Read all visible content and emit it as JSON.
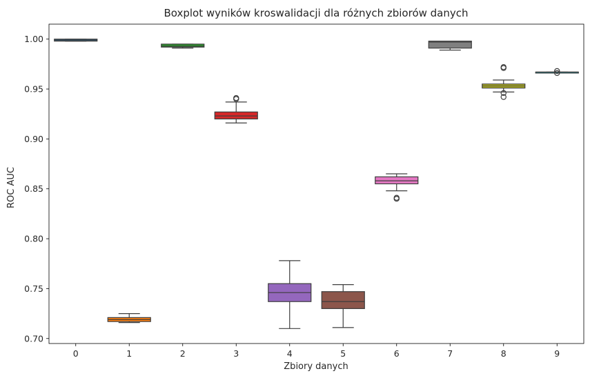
{
  "chart_data": {
    "type": "box",
    "title": "Boxplot wyników kroswalidacji dla różnych zbiorów danych",
    "xlabel": "Zbiory danych",
    "ylabel": "ROC AUC",
    "ylim": [
      0.695,
      1.015
    ],
    "yticks": [
      0.7,
      0.75,
      0.8,
      0.85,
      0.9,
      0.95,
      1.0
    ],
    "ytick_labels": [
      "0.70",
      "0.75",
      "0.80",
      "0.85",
      "0.90",
      "0.95",
      "1.00"
    ],
    "categories": [
      "0",
      "1",
      "2",
      "3",
      "4",
      "5",
      "6",
      "7",
      "8",
      "9"
    ],
    "grid": false,
    "legend": "none",
    "boxes": [
      {
        "category": "0",
        "color": "#1f77b4",
        "whisker_low": 0.998,
        "q1": 0.998,
        "median": 0.999,
        "q3": 1.0,
        "whisker_high": 1.0,
        "outliers": []
      },
      {
        "category": "1",
        "color": "#ff7f0e",
        "whisker_low": 0.716,
        "q1": 0.717,
        "median": 0.719,
        "q3": 0.721,
        "whisker_high": 0.725,
        "outliers": []
      },
      {
        "category": "2",
        "color": "#2ca02c",
        "whisker_low": 0.991,
        "q1": 0.992,
        "median": 0.993,
        "q3": 0.995,
        "whisker_high": 0.995,
        "outliers": []
      },
      {
        "category": "3",
        "color": "#d62728",
        "whisker_low": 0.916,
        "q1": 0.92,
        "median": 0.923,
        "q3": 0.927,
        "whisker_high": 0.937,
        "outliers": [
          0.94,
          0.941
        ]
      },
      {
        "category": "4",
        "color": "#9467bd",
        "whisker_low": 0.71,
        "q1": 0.737,
        "median": 0.746,
        "q3": 0.755,
        "whisker_high": 0.778,
        "outliers": []
      },
      {
        "category": "5",
        "color": "#8c564b",
        "whisker_low": 0.711,
        "q1": 0.73,
        "median": 0.737,
        "q3": 0.747,
        "whisker_high": 0.754,
        "outliers": []
      },
      {
        "category": "6",
        "color": "#e377c2",
        "whisker_low": 0.848,
        "q1": 0.855,
        "median": 0.858,
        "q3": 0.862,
        "whisker_high": 0.865,
        "outliers": [
          0.84,
          0.841
        ]
      },
      {
        "category": "7",
        "color": "#7f7f7f",
        "whisker_low": 0.989,
        "q1": 0.991,
        "median": 0.997,
        "q3": 0.998,
        "whisker_high": 0.998,
        "outliers": []
      },
      {
        "category": "8",
        "color": "#bcbd22",
        "whisker_low": 0.947,
        "q1": 0.951,
        "median": 0.953,
        "q3": 0.955,
        "whisker_high": 0.959,
        "outliers": [
          0.971,
          0.972,
          0.946,
          0.942
        ]
      },
      {
        "category": "9",
        "color": "#17becf",
        "whisker_low": 0.966,
        "q1": 0.966,
        "median": 0.967,
        "q3": 0.967,
        "whisker_high": 0.967,
        "outliers": [
          0.966,
          0.968
        ]
      }
    ]
  }
}
